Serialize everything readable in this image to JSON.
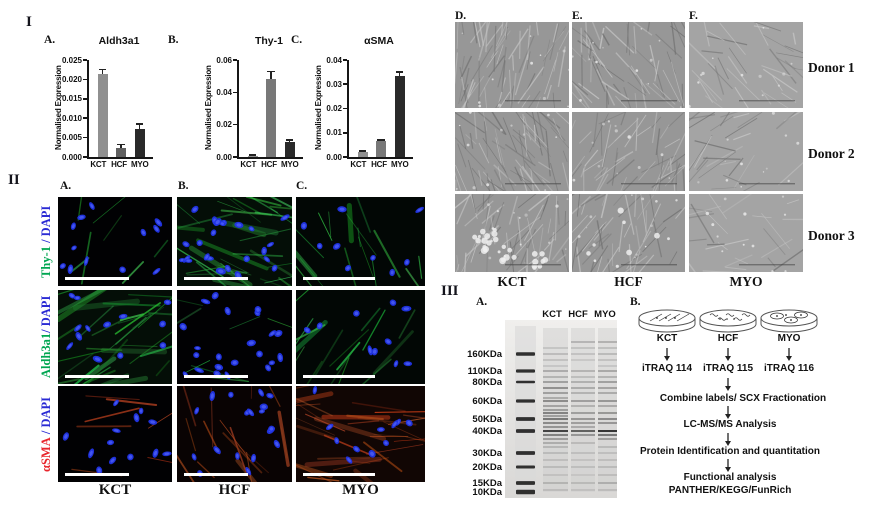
{
  "sections": {
    "i_label": "I",
    "ii_label": "II",
    "iii_label": "III"
  },
  "chart_data": [
    {
      "type": "bar",
      "panel_label": "A.",
      "title": "Aldh3a1",
      "ylabel": "Normalised Expression",
      "categories": [
        "KCT",
        "HCF",
        "MYO"
      ],
      "values": [
        0.0215,
        0.0022,
        0.0072
      ],
      "errors": [
        0.0013,
        0.0012,
        0.0015
      ],
      "ylim": [
        0,
        0.025
      ],
      "yticks": [
        0,
        0.005,
        0.01,
        0.015,
        0.02,
        0.025
      ],
      "ytick_labels": [
        "0.000",
        "0.005",
        "0.010",
        "0.015",
        "0.020",
        "0.025"
      ],
      "bar_colors": [
        "#909090",
        "#606060",
        "#2a2a2a"
      ],
      "grid": false,
      "legend": false
    },
    {
      "type": "bar",
      "panel_label": "B.",
      "title": "Thy-1",
      "ylabel": "Normalised Expression",
      "categories": [
        "KCT",
        "HCF",
        "MYO"
      ],
      "values": [
        0.0006,
        0.0485,
        0.0095
      ],
      "errors": [
        0.0004,
        0.005,
        0.0015
      ],
      "ylim": [
        0,
        0.06
      ],
      "yticks": [
        0,
        0.02,
        0.04,
        0.06
      ],
      "ytick_labels": [
        "0.00",
        "0.02",
        "0.04",
        "0.06"
      ],
      "bar_colors": [
        "#909090",
        "#787878",
        "#2a2a2a"
      ],
      "grid": false,
      "legend": false
    },
    {
      "type": "bar",
      "panel_label": "C.",
      "title": "αSMA",
      "ylabel": "Normalised Expression",
      "categories": [
        "KCT",
        "HCF",
        "MYO"
      ],
      "values": [
        0.002,
        0.0065,
        0.0335
      ],
      "errors": [
        0.0005,
        0.0007,
        0.002
      ],
      "ylim": [
        0,
        0.04
      ],
      "yticks": [
        0,
        0.01,
        0.02,
        0.03,
        0.04
      ],
      "ytick_labels": [
        "0.00",
        "0.01",
        "0.02",
        "0.03",
        "0.04"
      ],
      "bar_colors": [
        "#909090",
        "#787878",
        "#2a2a2a"
      ],
      "grid": false,
      "legend": false
    }
  ],
  "if_panel": {
    "column_labels": [
      "A.",
      "B.",
      "C."
    ],
    "row_labels": [
      {
        "marker": "Thy-1",
        "suffix": " / DAPI",
        "marker_color": "#00a651",
        "suffix_color": "#2a2ad4"
      },
      {
        "marker": "Aldh3a1",
        "suffix": "/ DAPI",
        "marker_color": "#00a651",
        "suffix_color": "#2a2ad4"
      },
      {
        "marker": "αSMA",
        "suffix": " / DAPI",
        "marker_color": "#e8262d",
        "suffix_color": "#2a2ad4"
      }
    ],
    "bottom_labels": [
      "KCT",
      "HCF",
      "MYO"
    ],
    "signal_grid": [
      [
        "low",
        "high",
        "medium"
      ],
      [
        "high",
        "low",
        "medium"
      ],
      [
        "low",
        "medium",
        "high"
      ]
    ]
  },
  "phase_panel": {
    "column_labels": [
      "D.",
      "E.",
      "F."
    ],
    "row_labels": [
      "Donor 1",
      "Donor 2",
      "Donor 3"
    ],
    "bottom_labels": [
      "KCT",
      "HCF",
      "MYO"
    ]
  },
  "proteomics": {
    "gel": {
      "panel_label": "A.",
      "lane_labels": [
        "KCT",
        "HCF",
        "MYO"
      ],
      "mw_labels": [
        "160KDa",
        "110KDa",
        "80KDa",
        "60KDa",
        "50KDa",
        "40KDa",
        "30KDa",
        "20KDa",
        "15KDa",
        "10KDa"
      ]
    },
    "workflow": {
      "panel_label": "B.",
      "samples": [
        "KCT",
        "HCF",
        "MYO"
      ],
      "itraq_labels": [
        "iTRAQ 114",
        "iTRAQ 115",
        "iTRAQ 116"
      ],
      "steps": [
        {
          "lines": [
            "Combine labels/ SCX Fractionation"
          ]
        },
        {
          "lines": [
            "LC-MS/MS Analysis"
          ]
        },
        {
          "lines": [
            "Protein Identification and quantitation"
          ]
        },
        {
          "lines": [
            "Functional analysis",
            "PANTHER/KEGG/FunRich"
          ]
        }
      ]
    }
  }
}
